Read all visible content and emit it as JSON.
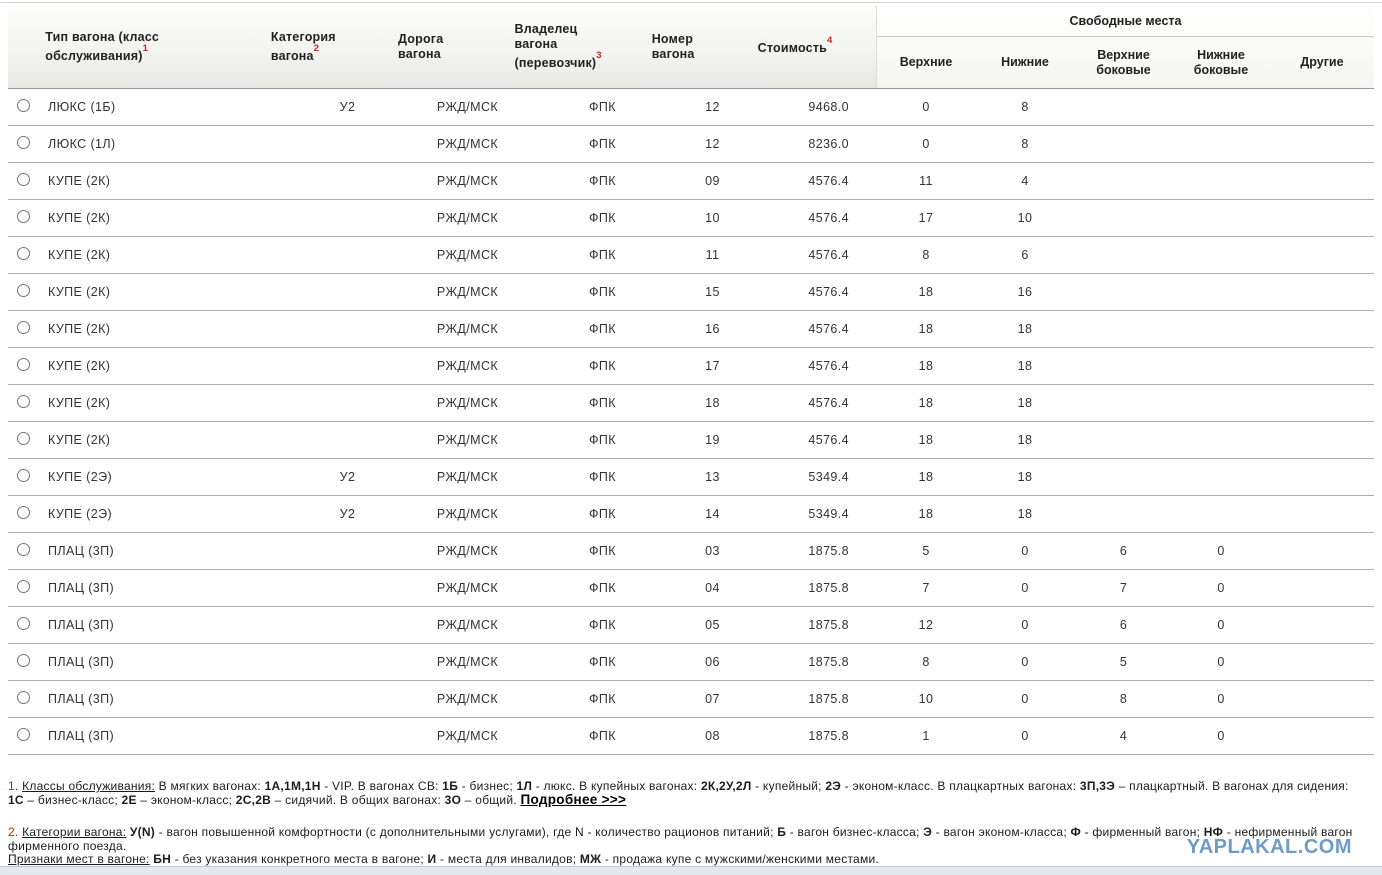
{
  "table": {
    "columns": {
      "type": {
        "label": "Тип вагона (класс обслуживания)",
        "sup": "1"
      },
      "category": {
        "label": "Категория вагона",
        "sup": "2"
      },
      "road": {
        "label": "Дорога вагона",
        "sup": ""
      },
      "owner": {
        "label": "Владелец вагона (перевозчик)",
        "sup": "3"
      },
      "number": {
        "label": "Номер вагона",
        "sup": ""
      },
      "cost": {
        "label": "Стоимость",
        "sup": "4"
      },
      "seats_group": "Свободные места",
      "seats": [
        "Верхние",
        "Нижние",
        "Верхние боковые",
        "Нижние боковые",
        "Другие"
      ]
    },
    "rows": [
      {
        "type": "ЛЮКС (1Б)",
        "category": "У2",
        "road": "РЖД/МСК",
        "owner": "ФПК",
        "number": "12",
        "cost": "9468.0",
        "seats": [
          "0",
          "8",
          "",
          "",
          ""
        ]
      },
      {
        "type": "ЛЮКС (1Л)",
        "category": "",
        "road": "РЖД/МСК",
        "owner": "ФПК",
        "number": "12",
        "cost": "8236.0",
        "seats": [
          "0",
          "8",
          "",
          "",
          ""
        ]
      },
      {
        "type": "КУПЕ (2К)",
        "category": "",
        "road": "РЖД/МСК",
        "owner": "ФПК",
        "number": "09",
        "cost": "4576.4",
        "seats": [
          "11",
          "4",
          "",
          "",
          ""
        ]
      },
      {
        "type": "КУПЕ (2К)",
        "category": "",
        "road": "РЖД/МСК",
        "owner": "ФПК",
        "number": "10",
        "cost": "4576.4",
        "seats": [
          "17",
          "10",
          "",
          "",
          ""
        ]
      },
      {
        "type": "КУПЕ (2К)",
        "category": "",
        "road": "РЖД/МСК",
        "owner": "ФПК",
        "number": "11",
        "cost": "4576.4",
        "seats": [
          "8",
          "6",
          "",
          "",
          ""
        ]
      },
      {
        "type": "КУПЕ (2К)",
        "category": "",
        "road": "РЖД/МСК",
        "owner": "ФПК",
        "number": "15",
        "cost": "4576.4",
        "seats": [
          "18",
          "16",
          "",
          "",
          ""
        ]
      },
      {
        "type": "КУПЕ (2К)",
        "category": "",
        "road": "РЖД/МСК",
        "owner": "ФПК",
        "number": "16",
        "cost": "4576.4",
        "seats": [
          "18",
          "18",
          "",
          "",
          ""
        ]
      },
      {
        "type": "КУПЕ (2К)",
        "category": "",
        "road": "РЖД/МСК",
        "owner": "ФПК",
        "number": "17",
        "cost": "4576.4",
        "seats": [
          "18",
          "18",
          "",
          "",
          ""
        ]
      },
      {
        "type": "КУПЕ (2К)",
        "category": "",
        "road": "РЖД/МСК",
        "owner": "ФПК",
        "number": "18",
        "cost": "4576.4",
        "seats": [
          "18",
          "18",
          "",
          "",
          ""
        ]
      },
      {
        "type": "КУПЕ (2К)",
        "category": "",
        "road": "РЖД/МСК",
        "owner": "ФПК",
        "number": "19",
        "cost": "4576.4",
        "seats": [
          "18",
          "18",
          "",
          "",
          ""
        ]
      },
      {
        "type": "КУПЕ (2Э)",
        "category": "У2",
        "road": "РЖД/МСК",
        "owner": "ФПК",
        "number": "13",
        "cost": "5349.4",
        "seats": [
          "18",
          "18",
          "",
          "",
          ""
        ]
      },
      {
        "type": "КУПЕ (2Э)",
        "category": "У2",
        "road": "РЖД/МСК",
        "owner": "ФПК",
        "number": "14",
        "cost": "5349.4",
        "seats": [
          "18",
          "18",
          "",
          "",
          ""
        ]
      },
      {
        "type": "ПЛАЦ (3П)",
        "category": "",
        "road": "РЖД/МСК",
        "owner": "ФПК",
        "number": "03",
        "cost": "1875.8",
        "seats": [
          "5",
          "0",
          "6",
          "0",
          ""
        ]
      },
      {
        "type": "ПЛАЦ (3П)",
        "category": "",
        "road": "РЖД/МСК",
        "owner": "ФПК",
        "number": "04",
        "cost": "1875.8",
        "seats": [
          "7",
          "0",
          "7",
          "0",
          ""
        ]
      },
      {
        "type": "ПЛАЦ (3П)",
        "category": "",
        "road": "РЖД/МСК",
        "owner": "ФПК",
        "number": "05",
        "cost": "1875.8",
        "seats": [
          "12",
          "0",
          "6",
          "0",
          ""
        ]
      },
      {
        "type": "ПЛАЦ (3П)",
        "category": "",
        "road": "РЖД/МСК",
        "owner": "ФПК",
        "number": "06",
        "cost": "1875.8",
        "seats": [
          "8",
          "0",
          "5",
          "0",
          ""
        ]
      },
      {
        "type": "ПЛАЦ (3П)",
        "category": "",
        "road": "РЖД/МСК",
        "owner": "ФПК",
        "number": "07",
        "cost": "1875.8",
        "seats": [
          "10",
          "0",
          "8",
          "0",
          ""
        ]
      },
      {
        "type": "ПЛАЦ (3П)",
        "category": "",
        "road": "РЖД/МСК",
        "owner": "ФПК",
        "number": "08",
        "cost": "1875.8",
        "seats": [
          "1",
          "0",
          "4",
          "0",
          ""
        ]
      }
    ]
  },
  "footnotes": [
    {
      "segments": [
        {
          "t": "1. ",
          "s": "num"
        },
        {
          "t": "Классы обслуживания:",
          "s": "u"
        },
        {
          "t": " В мягких вагонах: "
        },
        {
          "t": "1А,1М,1Н",
          "s": "b"
        },
        {
          "t": " - VIP. В вагонах СВ: "
        },
        {
          "t": "1Б",
          "s": "b"
        },
        {
          "t": " - бизнес; "
        },
        {
          "t": "1Л",
          "s": "b"
        },
        {
          "t": " - люкс. В купейных вагонах: "
        },
        {
          "t": "2К,2У,2Л",
          "s": "b"
        },
        {
          "t": " - купейный; "
        },
        {
          "t": "2Э",
          "s": "b"
        },
        {
          "t": " - эконом-класс. В плацкартных вагонах: "
        },
        {
          "t": "3П,3Э",
          "s": "b"
        },
        {
          "t": " – плацкартный. В вагонах для сидения: "
        },
        {
          "br": true
        },
        {
          "t": "1С",
          "s": "b"
        },
        {
          "t": " – бизнес-класс; "
        },
        {
          "t": "2Е",
          "s": "b"
        },
        {
          "t": " – эконом-класс; "
        },
        {
          "t": "2С,2В",
          "s": "b"
        },
        {
          "t": " – сидячий. В общих вагонах: "
        },
        {
          "t": "3О",
          "s": "b"
        },
        {
          "t": " – общий.  "
        },
        {
          "t": "Подробнее >>>",
          "s": "link"
        }
      ]
    },
    {
      "segments": [
        {
          "t": "2. ",
          "s": "num"
        },
        {
          "t": "Категории вагона:",
          "s": "u"
        },
        {
          "t": " "
        },
        {
          "t": "У(N)",
          "s": "b"
        },
        {
          "t": " - вагон повышенной комфортности (с дополнительными услугами), где N - количество рационов питаний; "
        },
        {
          "t": "Б",
          "s": "b"
        },
        {
          "t": " - вагон бизнес-класса; "
        },
        {
          "t": "Э",
          "s": "b"
        },
        {
          "t": " - вагон эконом-класса; "
        },
        {
          "t": "Ф",
          "s": "b"
        },
        {
          "t": " - фирменный вагон; "
        },
        {
          "t": "НФ",
          "s": "b"
        },
        {
          "t": " - нефирменный вагон "
        },
        {
          "br": true
        },
        {
          "t": "фирменного поезда."
        },
        {
          "br": true
        },
        {
          "t": "Признаки мест в вагоне:",
          "s": "u"
        },
        {
          "t": " "
        },
        {
          "t": "БН",
          "s": "b"
        },
        {
          "t": " - без указания конкретного места в вагоне; "
        },
        {
          "t": "И",
          "s": "b"
        },
        {
          "t": " - места для инвалидов; "
        },
        {
          "t": "МЖ",
          "s": "b"
        },
        {
          "t": " - продажа купе с мужскими/женскими местами."
        }
      ]
    }
  ],
  "watermark": "YAPLAKAL.COM",
  "colors": {
    "superscript_red": "#b43118",
    "footnote_number_red": "#cc2200",
    "watermark_blue": "#6e9cc6",
    "row_separator": "#aeaeae",
    "header_border": "#9a9a98",
    "bottom_bar": "#e4e8ef"
  }
}
